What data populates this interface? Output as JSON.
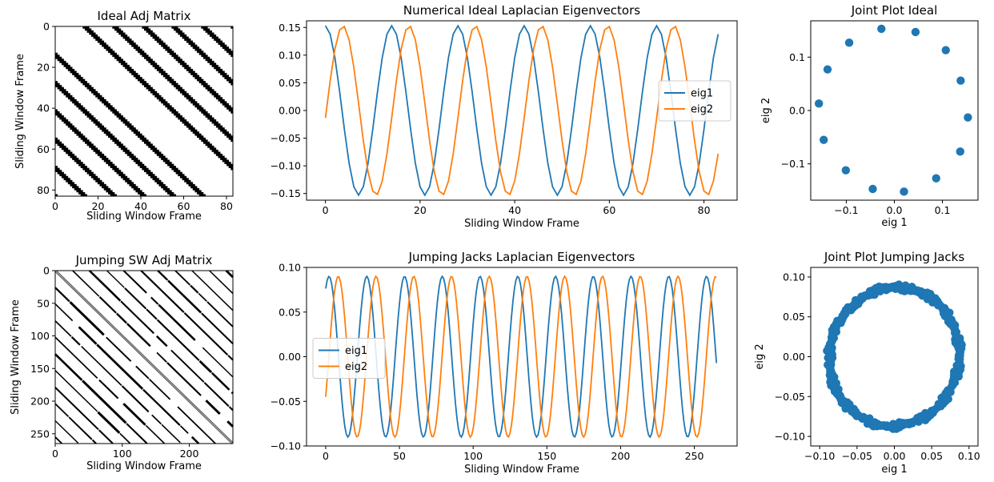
{
  "chart_data": [
    {
      "id": "ideal_adj",
      "type": "heatmap",
      "title": "Ideal Adj Matrix",
      "xlabel": "Sliding Window Frame",
      "ylabel": "Sliding Window Frame",
      "n": 84,
      "period": 14,
      "band_width": 2,
      "xticks": [
        0,
        20,
        40,
        60,
        80
      ],
      "yticks": [
        0,
        20,
        40,
        60,
        80
      ],
      "xlim": [
        0,
        83
      ],
      "ylim": [
        83,
        0
      ]
    },
    {
      "id": "ideal_eig",
      "type": "line",
      "title": "Numerical Ideal Laplacian Eigenvectors",
      "xlabel": "Sliding Window Frame",
      "ylabel": "",
      "n_points": 84,
      "period": 14,
      "amplitude": 0.153,
      "series": [
        {
          "name": "eig1",
          "color": "#1f77b4",
          "phase_deg": 90
        },
        {
          "name": "eig2",
          "color": "#ff7f0e",
          "phase_deg": -5
        }
      ],
      "xlim": [
        -4,
        87
      ],
      "ylim": [
        -0.162,
        0.162
      ],
      "xticks": [
        0,
        20,
        40,
        60,
        80
      ],
      "yticks": [
        0.15,
        0.1,
        0.05,
        0.0,
        -0.05,
        -0.1,
        -0.15
      ],
      "ytick_labels": [
        "0.15",
        "0.10",
        "0.05",
        "0.00",
        "−0.05",
        "−0.10",
        "−0.15"
      ],
      "legend_position": "center-right"
    },
    {
      "id": "ideal_joint",
      "type": "scatter",
      "title": "Joint Plot Ideal",
      "xlabel": "eig 1",
      "ylabel": "eig 2",
      "points_x": [
        0.153,
        0.138,
        0.107,
        0.044,
        -0.027,
        -0.094,
        -0.139,
        -0.157,
        -0.147,
        -0.101,
        -0.045,
        0.02,
        0.087,
        0.137
      ],
      "points_y": [
        -0.013,
        0.056,
        0.113,
        0.147,
        0.153,
        0.127,
        0.077,
        0.013,
        -0.055,
        -0.112,
        -0.147,
        -0.152,
        -0.127,
        -0.077
      ],
      "color": "#1f77b4",
      "xlim": [
        -0.174,
        0.174
      ],
      "ylim": [
        -0.168,
        0.168
      ],
      "xticks": [
        -0.1,
        0.0,
        0.1
      ],
      "xtick_labels": [
        "−0.1",
        "0.0",
        "0.1"
      ],
      "yticks": [
        0.1,
        0.0,
        -0.1
      ],
      "ytick_labels": [
        "0.1",
        "0.0",
        "−0.1"
      ]
    },
    {
      "id": "jump_adj",
      "type": "heatmap",
      "title": "Jumping SW Adj Matrix",
      "xlabel": "Sliding Window Frame",
      "ylabel": "Sliding Window Frame",
      "n": 265,
      "period": 25.5,
      "xticks": [
        0,
        100,
        200
      ],
      "yticks": [
        0,
        50,
        100,
        150,
        200,
        250
      ],
      "xlim": [
        0,
        265
      ],
      "ylim": [
        265,
        0
      ]
    },
    {
      "id": "jump_eig",
      "type": "line",
      "title": "Jumping Jacks Laplacian Eigenvectors",
      "xlabel": "Sliding Window Frame",
      "ylabel": "",
      "n_points": 266,
      "period": 25.6,
      "amplitude": 0.09,
      "series": [
        {
          "name": "eig1",
          "color": "#1f77b4",
          "phase_deg": 58
        },
        {
          "name": "eig2",
          "color": "#ff7f0e",
          "phase_deg": -30
        }
      ],
      "xlim": [
        -13,
        279
      ],
      "ylim": [
        -0.1,
        0.1
      ],
      "xticks": [
        0,
        50,
        100,
        150,
        200,
        250
      ],
      "yticks": [
        0.1,
        0.05,
        0.0,
        -0.05,
        -0.1
      ],
      "ytick_labels": [
        "0.10",
        "0.05",
        "0.00",
        "−0.05",
        "−0.10"
      ],
      "legend_position": "center-left"
    },
    {
      "id": "jump_joint",
      "type": "scatter",
      "title": "Joint Plot Jumping Jacks",
      "xlabel": "eig 1",
      "ylabel": "eig 2",
      "n_points": 266,
      "radius": 0.087,
      "color": "#1f77b4",
      "xlim": [
        -0.112,
        0.112
      ],
      "ylim": [
        -0.112,
        0.112
      ],
      "xticks": [
        -0.1,
        -0.05,
        0.0,
        0.05,
        0.1
      ],
      "xtick_labels": [
        "−0.10",
        "−0.05",
        "0.00",
        "0.05",
        "0.10"
      ],
      "yticks": [
        0.1,
        0.05,
        0.0,
        -0.05,
        -0.1
      ],
      "ytick_labels": [
        "0.10",
        "0.05",
        "0.00",
        "−0.05",
        "−0.10"
      ]
    }
  ]
}
